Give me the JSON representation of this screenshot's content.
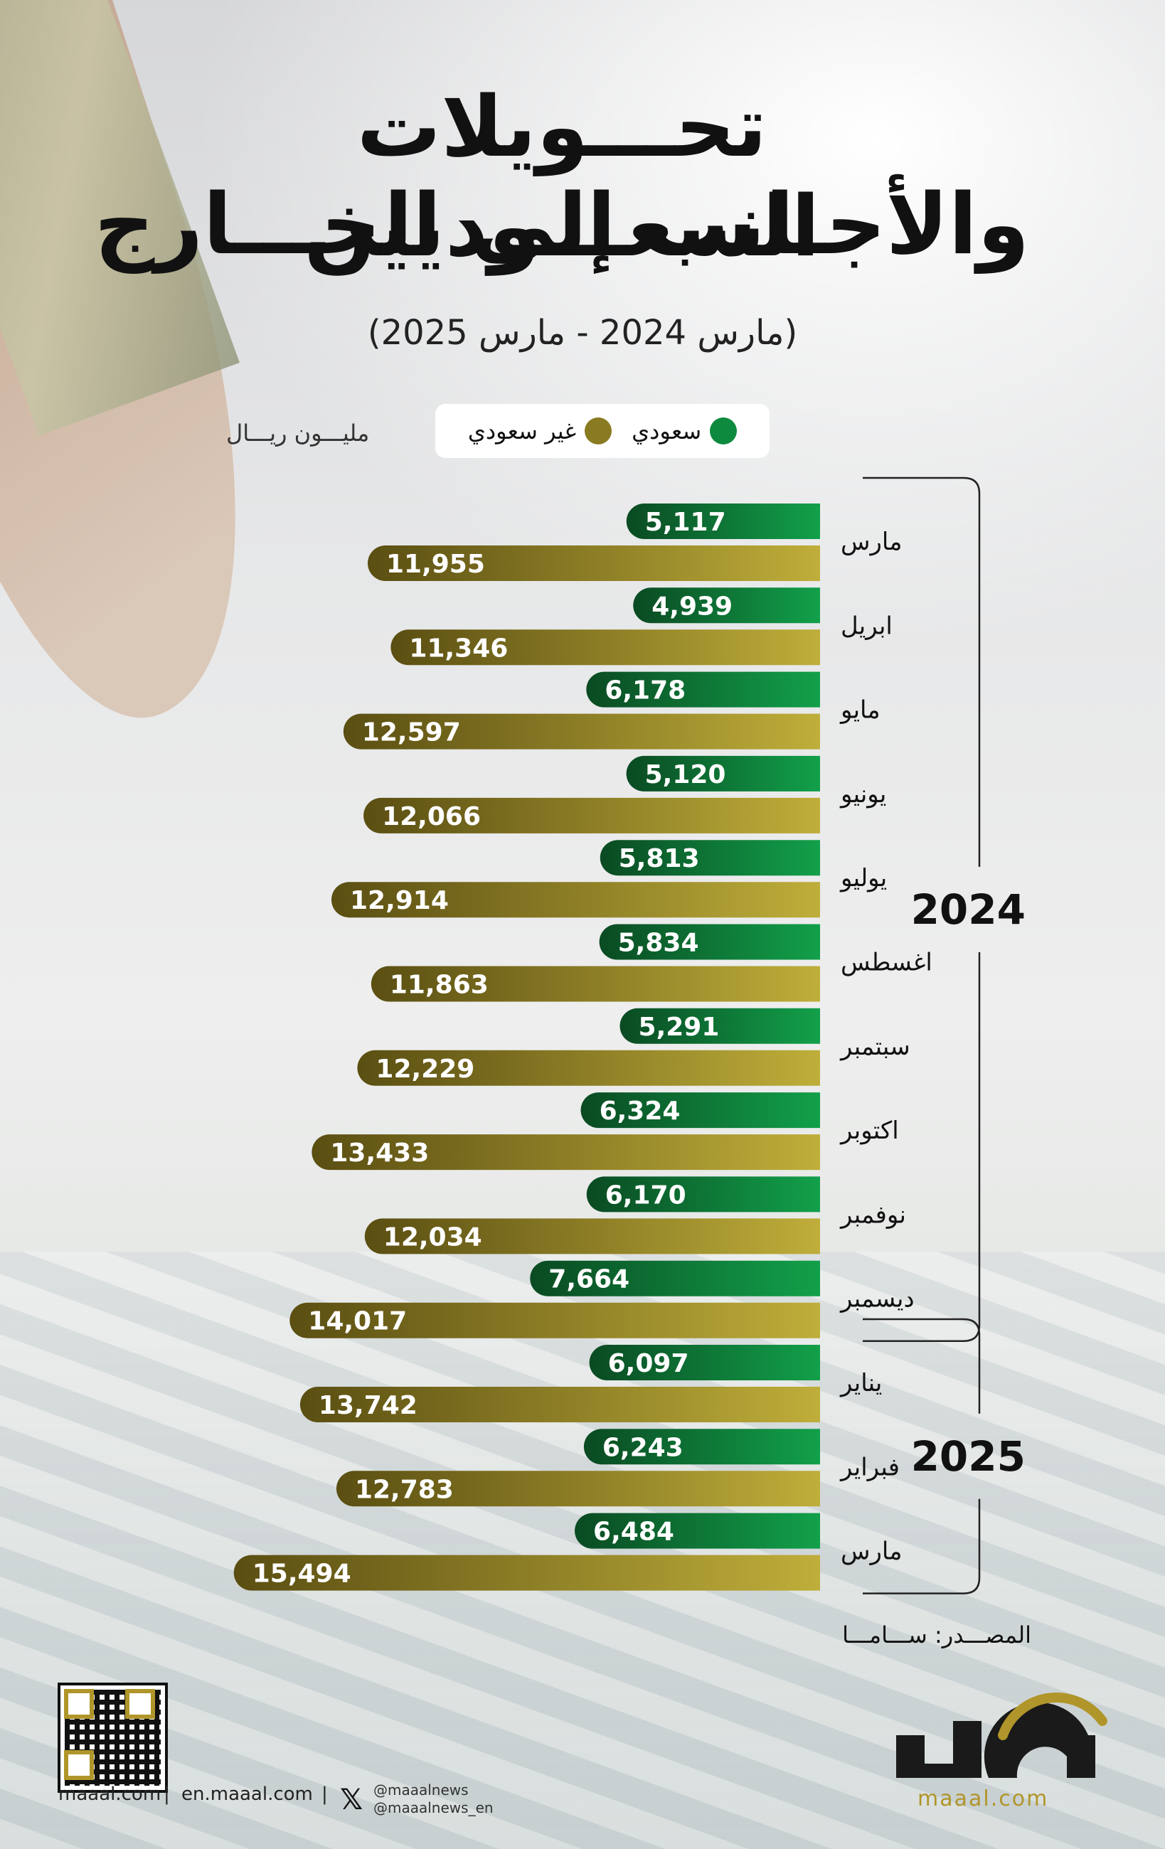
{
  "header": {
    "title_line1": "تحـــويلات السعـــوديين",
    "title_line2": "والأجـانب إلى الخـــارج",
    "subtitle": "(مارس 2024 - مارس 2025)"
  },
  "legend": {
    "saudi_label": "سعودي",
    "non_saudi_label": "غير سعودي",
    "saudi_color": "#0e8a3e",
    "non_saudi_color": "#a0902a"
  },
  "unit_label": "مليـــون ريـــال",
  "chart_data": {
    "type": "bar",
    "orientation": "horizontal",
    "categories": [
      "مارس",
      "ابريل",
      "مايو",
      "يونيو",
      "يوليو",
      "اغسطس",
      "سبتمبر",
      "اكتوبر",
      "نوفمبر",
      "ديسمبر",
      "يناير",
      "فبراير",
      "مارس"
    ],
    "series": [
      {
        "name": "سعودي",
        "color": "#0e8a3e",
        "values": [
          5117,
          4939,
          6178,
          5120,
          5813,
          5834,
          5291,
          6324,
          6170,
          7664,
          6097,
          6243,
          6484
        ],
        "labels": [
          "5,117",
          "4,939",
          "6,178",
          "5,120",
          "5,813",
          "5,834",
          "5,291",
          "6,324",
          "6,170",
          "7,664",
          "6,097",
          "6,243",
          "6,484"
        ]
      },
      {
        "name": "غير سعودي",
        "color": "#a0902a",
        "values": [
          11955,
          11346,
          12597,
          12066,
          12914,
          11863,
          12229,
          13433,
          12034,
          14017,
          13742,
          12783,
          15494
        ],
        "labels": [
          "11,955",
          "11,346",
          "12,597",
          "12,066",
          "12,914",
          "11,863",
          "12,229",
          "13,433",
          "12,034",
          "14,017",
          "13,742",
          "12,783",
          "15,494"
        ]
      }
    ],
    "year_groups": [
      {
        "year": "2024",
        "start": 0,
        "end": 9
      },
      {
        "year": "2025",
        "start": 10,
        "end": 12
      }
    ],
    "ylabel": "مليـــون ريـــال",
    "xlim": [
      0,
      16000
    ],
    "grid": false,
    "legend_position": "top-right"
  },
  "source": "المصـــدر: ســـامـــا",
  "footer": {
    "site1": "maaal.com",
    "site2": "en.maaal.com",
    "handle1": "@maaalnews",
    "handle2": "@maaalnews_en",
    "logo_url": "maaal.com",
    "brand_color": "#b0962a"
  }
}
